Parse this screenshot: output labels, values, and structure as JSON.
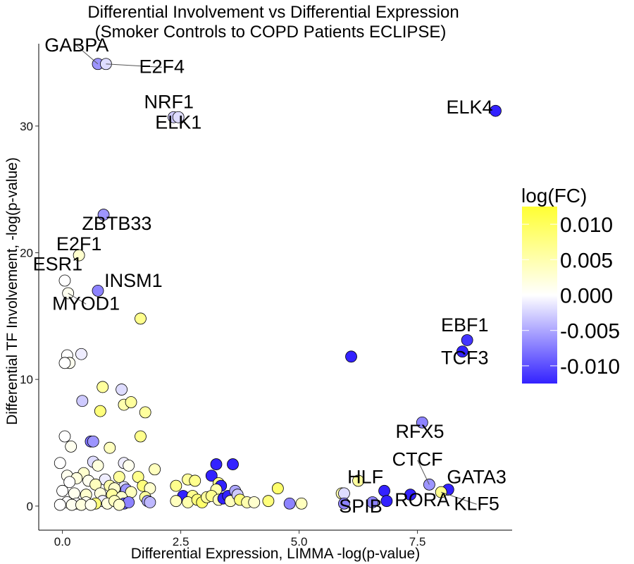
{
  "chart_data": {
    "type": "scatter",
    "title": "Differential Involvement vs Differential Expression",
    "subtitle": "(Smoker Controls to COPD Patients ECLIPSE)",
    "xlabel": "Differential Expression,  LIMMA -log(p-value)",
    "ylabel": "Differential TF Involvement, -log(p-value)",
    "xlim": [
      -0.5,
      9.5
    ],
    "ylim": [
      -1.9,
      36.5
    ],
    "x_ticks": [
      0,
      2.5,
      5,
      7.5
    ],
    "x_tick_labels": [
      "0.0",
      "2.5",
      "5.0",
      "7.5"
    ],
    "y_ticks": [
      0,
      10,
      20,
      30
    ],
    "y_tick_labels": [
      "0",
      "10",
      "20",
      "30"
    ],
    "grid": false,
    "color_scale": {
      "title": "log(FC)",
      "low_color": "#3322ff",
      "mid_color": "#ffffff",
      "high_color": "#ffff33",
      "min": -0.0125,
      "max": 0.0125,
      "ticks": [
        0.01,
        0.005,
        0.0,
        -0.005,
        -0.01
      ],
      "tick_labels": [
        "0.010",
        "0.005",
        "0.000",
        "-0.005",
        "-0.010"
      ],
      "position": "right"
    },
    "points": [
      {
        "x": 0.75,
        "y": 34.9,
        "fc": -0.006,
        "label": "GABPA"
      },
      {
        "x": 0.92,
        "y": 34.9,
        "fc": -0.002,
        "label": "E2F4"
      },
      {
        "x": 2.35,
        "y": 30.7,
        "fc": -0.003,
        "label": "NRF1"
      },
      {
        "x": 2.45,
        "y": 30.7,
        "fc": -0.002,
        "label": "ELK1"
      },
      {
        "x": 9.15,
        "y": 31.2,
        "fc": -0.0125,
        "label": "ELK4"
      },
      {
        "x": 0.87,
        "y": 23.0,
        "fc": -0.006,
        "label": "ZBTB33"
      },
      {
        "x": 0.35,
        "y": 19.8,
        "fc": 0.003,
        "label": "E2F1"
      },
      {
        "x": 0.05,
        "y": 17.8,
        "fc": 0.0,
        "label": "ESR1"
      },
      {
        "x": 0.75,
        "y": 17.0,
        "fc": -0.007,
        "label": "INSM1"
      },
      {
        "x": 0.12,
        "y": 16.8,
        "fc": 0.001,
        "label": "MYOD1"
      },
      {
        "x": 8.55,
        "y": 13.1,
        "fc": -0.0115,
        "label": "EBF1"
      },
      {
        "x": 8.45,
        "y": 12.2,
        "fc": -0.0125,
        "label": "TCF3"
      },
      {
        "x": 7.6,
        "y": 6.6,
        "fc": -0.007,
        "label": "RFX5"
      },
      {
        "x": 7.75,
        "y": 1.7,
        "fc": -0.006,
        "label": "CTCF"
      },
      {
        "x": 8.15,
        "y": 1.3,
        "fc": -0.0125,
        "label": "GATA3"
      },
      {
        "x": 8.0,
        "y": 1.1,
        "fc": 0.007,
        "label": "KLF5"
      },
      {
        "x": 6.8,
        "y": 1.2,
        "fc": -0.0125,
        "label": "HLF"
      },
      {
        "x": 7.35,
        "y": 0.9,
        "fc": -0.0125,
        "label": "RORA"
      },
      {
        "x": 6.85,
        "y": 0.4,
        "fc": -0.0125,
        "label": "SPIB"
      },
      {
        "x": 6.1,
        "y": 11.8,
        "fc": -0.0125
      },
      {
        "x": 1.65,
        "y": 14.8,
        "fc": 0.007
      },
      {
        "x": 0.1,
        "y": 11.9,
        "fc": 0.0
      },
      {
        "x": 0.15,
        "y": 11.3,
        "fc": 0.001
      },
      {
        "x": 0.05,
        "y": 11.3,
        "fc": 0.0
      },
      {
        "x": 0.4,
        "y": 12.0,
        "fc": -0.001
      },
      {
        "x": 0.85,
        "y": 9.4,
        "fc": 0.006
      },
      {
        "x": 1.25,
        "y": 9.2,
        "fc": -0.002
      },
      {
        "x": 0.42,
        "y": 8.3,
        "fc": -0.003
      },
      {
        "x": 1.3,
        "y": 8.0,
        "fc": 0.005
      },
      {
        "x": 1.45,
        "y": 8.2,
        "fc": 0.006
      },
      {
        "x": 0.8,
        "y": 7.5,
        "fc": 0.008
      },
      {
        "x": 1.75,
        "y": 7.4,
        "fc": 0.006
      },
      {
        "x": 0.05,
        "y": 5.5,
        "fc": 0.0
      },
      {
        "x": 1.65,
        "y": 5.5,
        "fc": 0.007
      },
      {
        "x": 0.6,
        "y": 5.1,
        "fc": -0.008
      },
      {
        "x": 0.65,
        "y": 5.1,
        "fc": -0.006
      },
      {
        "x": 0.18,
        "y": 4.7,
        "fc": 0.001
      },
      {
        "x": 1.0,
        "y": 4.6,
        "fc": 0.004
      },
      {
        "x": -0.05,
        "y": 3.4,
        "fc": 0.0
      },
      {
        "x": 0.65,
        "y": 3.5,
        "fc": -0.002
      },
      {
        "x": 0.75,
        "y": 3.2,
        "fc": 0.002
      },
      {
        "x": 1.3,
        "y": 3.4,
        "fc": -0.001
      },
      {
        "x": 1.4,
        "y": 3.2,
        "fc": 0.001
      },
      {
        "x": 1.95,
        "y": 2.9,
        "fc": 0.004
      },
      {
        "x": 0.45,
        "y": 2.6,
        "fc": 0.003
      },
      {
        "x": 0.1,
        "y": 2.4,
        "fc": 0.001
      },
      {
        "x": 0.3,
        "y": 2.2,
        "fc": 0.002
      },
      {
        "x": 0.55,
        "y": 2.0,
        "fc": 0.001
      },
      {
        "x": 0.9,
        "y": 2.1,
        "fc": -0.001
      },
      {
        "x": 1.2,
        "y": 2.3,
        "fc": 0.006
      },
      {
        "x": 1.6,
        "y": 2.3,
        "fc": 0.007
      },
      {
        "x": 0.15,
        "y": 1.9,
        "fc": 0.0
      },
      {
        "x": 0.7,
        "y": 1.7,
        "fc": 0.004
      },
      {
        "x": 1.0,
        "y": 1.6,
        "fc": 0.005
      },
      {
        "x": 1.3,
        "y": 1.5,
        "fc": -0.002
      },
      {
        "x": 1.1,
        "y": 1.4,
        "fc": 0.003
      },
      {
        "x": 1.7,
        "y": 1.6,
        "fc": 0.008
      },
      {
        "x": 1.85,
        "y": 1.4,
        "fc": 0.003
      },
      {
        "x": 0.0,
        "y": 1.2,
        "fc": 0.0
      },
      {
        "x": 0.25,
        "y": 1.0,
        "fc": 0.001
      },
      {
        "x": 0.5,
        "y": 0.9,
        "fc": 0.003
      },
      {
        "x": 0.8,
        "y": 1.0,
        "fc": 0.002
      },
      {
        "x": 1.05,
        "y": 0.9,
        "fc": 0.006
      },
      {
        "x": 1.35,
        "y": 1.3,
        "fc": -0.006
      },
      {
        "x": 1.45,
        "y": 1.1,
        "fc": 0.004
      },
      {
        "x": 1.25,
        "y": 0.7,
        "fc": 0.003
      },
      {
        "x": 1.75,
        "y": 0.7,
        "fc": 0.006
      },
      {
        "x": 1.8,
        "y": 0.4,
        "fc": -0.005
      },
      {
        "x": 1.85,
        "y": 0.3,
        "fc": -0.004
      },
      {
        "x": 1.3,
        "y": 0.2,
        "fc": -0.009
      },
      {
        "x": 1.4,
        "y": 0.3,
        "fc": -0.007
      },
      {
        "x": 0.85,
        "y": 0.4,
        "fc": -0.001
      },
      {
        "x": 0.95,
        "y": 0.2,
        "fc": 0.002
      },
      {
        "x": 0.7,
        "y": 0.2,
        "fc": 0.008
      },
      {
        "x": 0.5,
        "y": 0.3,
        "fc": 0.001
      },
      {
        "x": 0.3,
        "y": 0.2,
        "fc": 0.0
      },
      {
        "x": 0.1,
        "y": 0.3,
        "fc": 0.0
      },
      {
        "x": -0.05,
        "y": 0.1,
        "fc": 0.0
      },
      {
        "x": 0.2,
        "y": 0.1,
        "fc": 0.001
      },
      {
        "x": 0.4,
        "y": 0.1,
        "fc": 0.002
      },
      {
        "x": 0.6,
        "y": 0.1,
        "fc": 0.001
      },
      {
        "x": 1.1,
        "y": 0.4,
        "fc": 0.004
      },
      {
        "x": 1.2,
        "y": 0.1,
        "fc": 0.003
      },
      {
        "x": 2.4,
        "y": 1.6,
        "fc": 0.007
      },
      {
        "x": 2.65,
        "y": 2.1,
        "fc": 0.006
      },
      {
        "x": 2.8,
        "y": 2.0,
        "fc": 0.007
      },
      {
        "x": 2.55,
        "y": 0.8,
        "fc": -0.0125
      },
      {
        "x": 2.75,
        "y": 0.8,
        "fc": 0.007
      },
      {
        "x": 2.4,
        "y": 0.4,
        "fc": 0.004
      },
      {
        "x": 2.65,
        "y": 0.3,
        "fc": 0.005
      },
      {
        "x": 2.85,
        "y": 0.5,
        "fc": 0.008
      },
      {
        "x": 2.95,
        "y": 0.3,
        "fc": 0.009
      },
      {
        "x": 3.05,
        "y": 0.7,
        "fc": 0.006
      },
      {
        "x": 3.15,
        "y": 2.4,
        "fc": -0.0125
      },
      {
        "x": 3.25,
        "y": 3.3,
        "fc": -0.0125
      },
      {
        "x": 3.6,
        "y": 3.3,
        "fc": -0.0125
      },
      {
        "x": 3.3,
        "y": 1.8,
        "fc": 0.007
      },
      {
        "x": 3.35,
        "y": 1.6,
        "fc": -0.0125
      },
      {
        "x": 3.25,
        "y": 1.3,
        "fc": 0.005
      },
      {
        "x": 3.15,
        "y": 0.8,
        "fc": 0.007
      },
      {
        "x": 3.3,
        "y": 0.5,
        "fc": 0.004
      },
      {
        "x": 3.4,
        "y": 0.6,
        "fc": -0.0125
      },
      {
        "x": 3.5,
        "y": 0.8,
        "fc": -0.0125
      },
      {
        "x": 3.55,
        "y": 0.4,
        "fc": 0.004
      },
      {
        "x": 3.65,
        "y": 1.2,
        "fc": -0.005
      },
      {
        "x": 3.7,
        "y": 0.9,
        "fc": -0.003
      },
      {
        "x": 3.75,
        "y": 0.5,
        "fc": 0.008
      },
      {
        "x": 3.9,
        "y": 0.3,
        "fc": 0.005
      },
      {
        "x": 4.05,
        "y": 0.3,
        "fc": 0.003
      },
      {
        "x": 4.35,
        "y": 0.4,
        "fc": 0.008
      },
      {
        "x": 4.55,
        "y": 1.4,
        "fc": 0.009
      },
      {
        "x": 4.8,
        "y": 0.2,
        "fc": -0.007
      },
      {
        "x": 5.05,
        "y": 0.2,
        "fc": 0.004
      },
      {
        "x": 5.9,
        "y": 1.0,
        "fc": 0.005
      },
      {
        "x": 5.95,
        "y": 1.0,
        "fc": -0.002
      },
      {
        "x": 5.95,
        "y": 0.2,
        "fc": -0.007
      },
      {
        "x": 6.25,
        "y": 2.0,
        "fc": 0.006
      },
      {
        "x": 6.55,
        "y": 0.3,
        "fc": -0.007
      }
    ],
    "labels": [
      {
        "text": "GABPA",
        "x": 0.3,
        "y": 35.9,
        "anchor": "middle",
        "point": 0
      },
      {
        "text": "E2F4",
        "x": 2.1,
        "y": 34.2,
        "anchor": "middle",
        "point": 1
      },
      {
        "text": "NRF1",
        "x": 2.25,
        "y": 31.4,
        "anchor": "middle"
      },
      {
        "text": "ELK1",
        "x": 2.45,
        "y": 29.8,
        "anchor": "middle"
      },
      {
        "text": "ELK4",
        "x": 8.6,
        "y": 31.0,
        "anchor": "middle"
      },
      {
        "text": "ZBTB33",
        "x": 1.15,
        "y": 21.8,
        "anchor": "middle"
      },
      {
        "text": "E2F1",
        "x": 0.35,
        "y": 20.2,
        "anchor": "middle"
      },
      {
        "text": "ESR1",
        "x": -0.1,
        "y": 18.6,
        "anchor": "middle"
      },
      {
        "text": "INSM1",
        "x": 1.5,
        "y": 17.3,
        "anchor": "middle"
      },
      {
        "text": "MYOD1",
        "x": 0.5,
        "y": 15.5,
        "anchor": "middle",
        "point": 9
      },
      {
        "text": "EBF1",
        "x": 8.5,
        "y": 13.8,
        "anchor": "middle"
      },
      {
        "text": "TCF3",
        "x": 8.5,
        "y": 11.2,
        "anchor": "middle"
      },
      {
        "text": "RFX5",
        "x": 7.55,
        "y": 5.4,
        "anchor": "middle"
      },
      {
        "text": "CTCF",
        "x": 7.5,
        "y": 3.2,
        "anchor": "middle",
        "point": 13
      },
      {
        "text": "GATA3",
        "x": 8.75,
        "y": 1.8,
        "anchor": "middle"
      },
      {
        "text": "KLF5",
        "x": 8.75,
        "y": -0.3,
        "anchor": "middle",
        "point": 15
      },
      {
        "text": "HLF",
        "x": 6.4,
        "y": 1.8,
        "anchor": "middle"
      },
      {
        "text": "RORA",
        "x": 7.6,
        "y": 0.0,
        "anchor": "middle"
      },
      {
        "text": "SPIB",
        "x": 6.3,
        "y": -0.5,
        "anchor": "middle"
      }
    ]
  }
}
